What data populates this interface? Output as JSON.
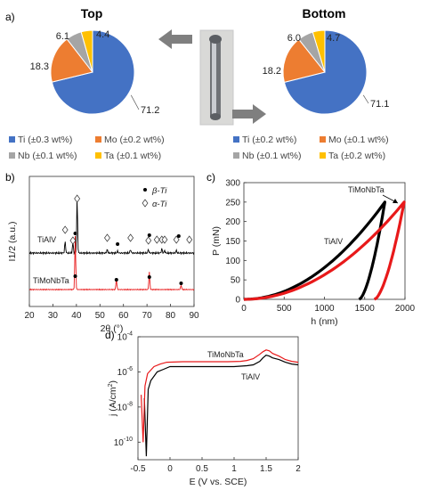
{
  "colors": {
    "Ti": "#4472C4",
    "Mo": "#ED7D31",
    "Nb": "#A5A5A5",
    "Ta": "#FFC000",
    "black": "#000000",
    "red": "#E8191A",
    "arrow": "#7F7F7F"
  },
  "panel_labels": {
    "a": "a)",
    "b": "b)",
    "c": "c)",
    "d": "d)"
  },
  "chart_data": [
    {
      "id": "pie_top",
      "type": "pie",
      "title": "Top",
      "categories": [
        "Ti",
        "Mo",
        "Nb",
        "Ta"
      ],
      "values": [
        71.2,
        18.3,
        6.1,
        4.4
      ],
      "value_labels": [
        "71.2",
        "18.3",
        "6.1",
        "4.4"
      ],
      "legend": [
        "Ti (±0.3 wt%)",
        "Mo (±0.2 wt%)",
        "Nb (±0.1 wt%)",
        "Ta (±0.1 wt%)"
      ]
    },
    {
      "id": "pie_bottom",
      "type": "pie",
      "title": "Bottom",
      "categories": [
        "Ti",
        "Mo",
        "Nb",
        "Ta"
      ],
      "values": [
        71.1,
        18.2,
        6.0,
        4.7
      ],
      "value_labels": [
        "71.1",
        "18.2",
        "6.0",
        "4.7"
      ],
      "legend": [
        "Ti (±0.2 wt%)",
        "Mo (±0.1 wt%)",
        "Nb (±0.1 wt%)",
        "Ta (±0.2 wt%)"
      ]
    },
    {
      "id": "xrd",
      "type": "line",
      "xlabel": "2θ (°)",
      "ylabel": "I1/2 (a.u.)",
      "xlim": [
        20,
        90
      ],
      "xticks": [
        20,
        30,
        40,
        50,
        60,
        70,
        80,
        90
      ],
      "series_labels": [
        "TiAlV",
        "TiMoNbTa"
      ],
      "legend": [
        "β-Ti",
        "α-Ti"
      ],
      "peaks_beta_TiAlV": [
        39.5,
        57.5,
        71,
        83.5
      ],
      "peaks_alpha_TiAlV": [
        35.2,
        38.5,
        40.3,
        53.1,
        63,
        70.6,
        74.2,
        76.3,
        77.5,
        82.5,
        88
      ],
      "peaks_beta_TiMoNbTa": [
        39.5,
        57,
        71,
        84.5
      ]
    },
    {
      "id": "nanoindentation",
      "type": "line",
      "xlabel": "h (nm)",
      "ylabel": "P (mN)",
      "xlim": [
        0,
        2000
      ],
      "ylim": [
        0,
        300
      ],
      "xticks": [
        0,
        500,
        1000,
        1500,
        2000
      ],
      "yticks": [
        0,
        50,
        100,
        150,
        200,
        250,
        300
      ],
      "series": [
        {
          "name": "TiAlV",
          "color": "#000000",
          "max_depth": 1750,
          "max_load": 250,
          "final_depth": 1430
        },
        {
          "name": "TiMoNbTa",
          "color": "#E8191A",
          "max_depth": 1990,
          "max_load": 250,
          "final_depth": 1620
        }
      ]
    },
    {
      "id": "polarization",
      "type": "line",
      "xlabel": "E (V vs. SCE)",
      "ylabel": "j (A/cm2)",
      "xlim": [
        -0.5,
        2
      ],
      "xticks": [
        "-0.5",
        "0",
        "0.5",
        "1",
        "1.5",
        "2"
      ],
      "ylim_log": [
        -11,
        -4
      ],
      "yticks": [
        "10-10",
        "10-8",
        "10-6",
        "10-4"
      ],
      "series": [
        {
          "name": "TiAlV",
          "color": "#000000",
          "x": [
            -0.4,
            -0.37,
            -0.34,
            -0.3,
            -0.2,
            -0.1,
            0.0,
            0.3,
            0.6,
            1.0,
            1.2,
            1.3,
            1.4,
            1.45,
            1.5,
            1.55,
            1.6,
            1.7,
            1.8,
            1.9,
            2.0
          ],
          "logy": [
            -7.5,
            -10.8,
            -7.0,
            -6.5,
            -6.0,
            -5.85,
            -5.7,
            -5.7,
            -5.7,
            -5.7,
            -5.65,
            -5.6,
            -5.4,
            -5.2,
            -5.05,
            -5.1,
            -5.2,
            -5.3,
            -5.45,
            -5.55,
            -5.6
          ]
        },
        {
          "name": "TiMoNbTa",
          "color": "#E8191A",
          "x": [
            -0.45,
            -0.42,
            -0.39,
            -0.35,
            -0.25,
            -0.15,
            -0.05,
            0.2,
            0.5,
            0.9,
            1.1,
            1.2,
            1.3,
            1.4,
            1.45,
            1.5,
            1.55,
            1.6,
            1.7,
            1.8,
            1.9,
            2.0
          ],
          "logy": [
            -7.3,
            -10.0,
            -6.8,
            -6.1,
            -5.7,
            -5.55,
            -5.45,
            -5.42,
            -5.42,
            -5.42,
            -5.4,
            -5.35,
            -5.25,
            -5.0,
            -4.85,
            -4.75,
            -4.8,
            -4.95,
            -5.1,
            -5.3,
            -5.4,
            -5.45
          ]
        }
      ],
      "series_labels": [
        "TiMoNbTa",
        "TiAlV"
      ]
    }
  ]
}
